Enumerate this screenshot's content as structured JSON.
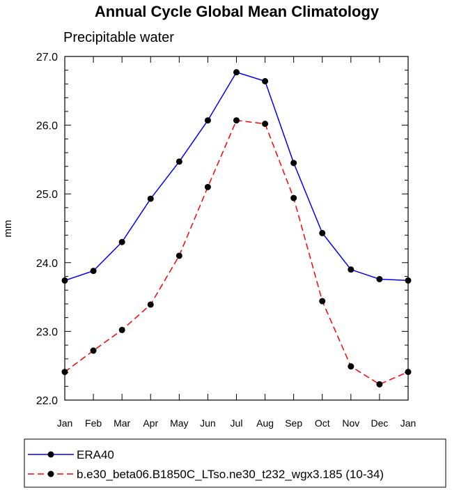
{
  "chart_data": {
    "type": "line",
    "title": "Annual Cycle Global Mean Climatology",
    "subtitle": "Precipitable water",
    "xlabel": "",
    "ylabel": "mm",
    "categories": [
      "Jan",
      "Feb",
      "Mar",
      "Apr",
      "May",
      "Jun",
      "Jul",
      "Aug",
      "Sep",
      "Oct",
      "Nov",
      "Dec",
      "Jan"
    ],
    "ylim": [
      22.0,
      27.0
    ],
    "yticks": [
      "22.0",
      "23.0",
      "24.0",
      "25.0",
      "26.0",
      "27.0"
    ],
    "grid": false,
    "legend_position": "bottom",
    "series": [
      {
        "name": "ERA40",
        "color": "#0000ff",
        "dash": "solid",
        "values": [
          23.74,
          23.88,
          24.3,
          24.93,
          25.47,
          26.07,
          26.77,
          26.64,
          25.45,
          24.43,
          23.9,
          23.76,
          23.74
        ]
      },
      {
        "name": "b.e30_beta06.B1850C_LTso.ne30_t232_wgx3.185 (10-34)",
        "color": "#ff0000",
        "dash": "dashed",
        "values": [
          22.41,
          22.72,
          23.02,
          23.39,
          24.1,
          25.1,
          26.07,
          26.02,
          24.94,
          23.44,
          22.49,
          22.23,
          22.41
        ]
      }
    ],
    "marker_color": "#000000"
  }
}
